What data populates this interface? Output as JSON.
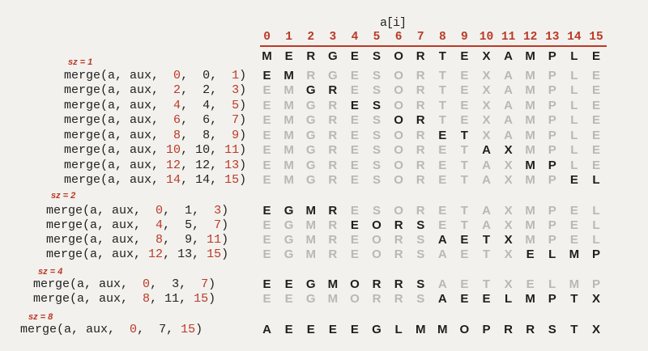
{
  "colors": {
    "red": "#bb3a26",
    "ink": "#222222",
    "letter_black": "#1e1e1e",
    "letter_gray": "#b9b8b5",
    "background": "#f2f1ee"
  },
  "header": {
    "label": "a[i]",
    "indices": [
      "0",
      "1",
      "2",
      "3",
      "4",
      "5",
      "6",
      "7",
      "8",
      "9",
      "10",
      "11",
      "12",
      "13",
      "14",
      "15"
    ]
  },
  "call_prefix": "merge(a, aux,",
  "call_separator": ", ",
  "call_suffix": ")",
  "initial": {
    "letters": [
      "M",
      "E",
      "R",
      "G",
      "E",
      "S",
      "O",
      "R",
      "T",
      "E",
      "X",
      "A",
      "M",
      "P",
      "L",
      "E"
    ],
    "highlight": [
      0,
      15
    ]
  },
  "groups": [
    {
      "sz_label": "sz = 1",
      "rows": [
        {
          "lo": " 0",
          "mid": " 0",
          "hi": " 1",
          "highlight": [
            0,
            1
          ],
          "letters": [
            "E",
            "M",
            "R",
            "G",
            "E",
            "S",
            "O",
            "R",
            "T",
            "E",
            "X",
            "A",
            "M",
            "P",
            "L",
            "E"
          ]
        },
        {
          "lo": " 2",
          "mid": " 2",
          "hi": " 3",
          "highlight": [
            2,
            3
          ],
          "letters": [
            "E",
            "M",
            "G",
            "R",
            "E",
            "S",
            "O",
            "R",
            "T",
            "E",
            "X",
            "A",
            "M",
            "P",
            "L",
            "E"
          ]
        },
        {
          "lo": " 4",
          "mid": " 4",
          "hi": " 5",
          "highlight": [
            4,
            5
          ],
          "letters": [
            "E",
            "M",
            "G",
            "R",
            "E",
            "S",
            "O",
            "R",
            "T",
            "E",
            "X",
            "A",
            "M",
            "P",
            "L",
            "E"
          ]
        },
        {
          "lo": " 6",
          "mid": " 6",
          "hi": " 7",
          "highlight": [
            6,
            7
          ],
          "letters": [
            "E",
            "M",
            "G",
            "R",
            "E",
            "S",
            "O",
            "R",
            "T",
            "E",
            "X",
            "A",
            "M",
            "P",
            "L",
            "E"
          ]
        },
        {
          "lo": " 8",
          "mid": " 8",
          "hi": " 9",
          "highlight": [
            8,
            9
          ],
          "letters": [
            "E",
            "M",
            "G",
            "R",
            "E",
            "S",
            "O",
            "R",
            "E",
            "T",
            "X",
            "A",
            "M",
            "P",
            "L",
            "E"
          ]
        },
        {
          "lo": "10",
          "mid": "10",
          "hi": "11",
          "highlight": [
            10,
            11
          ],
          "letters": [
            "E",
            "M",
            "G",
            "R",
            "E",
            "S",
            "O",
            "R",
            "E",
            "T",
            "A",
            "X",
            "M",
            "P",
            "L",
            "E"
          ]
        },
        {
          "lo": "12",
          "mid": "12",
          "hi": "13",
          "highlight": [
            12,
            13
          ],
          "letters": [
            "E",
            "M",
            "G",
            "R",
            "E",
            "S",
            "O",
            "R",
            "E",
            "T",
            "A",
            "X",
            "M",
            "P",
            "L",
            "E"
          ]
        },
        {
          "lo": "14",
          "mid": "14",
          "hi": "15",
          "highlight": [
            14,
            15
          ],
          "letters": [
            "E",
            "M",
            "G",
            "R",
            "E",
            "S",
            "O",
            "R",
            "E",
            "T",
            "A",
            "X",
            "M",
            "P",
            "E",
            "L"
          ]
        }
      ]
    },
    {
      "sz_label": "sz = 2",
      "rows": [
        {
          "lo": " 0",
          "mid": " 1",
          "hi": " 3",
          "highlight": [
            0,
            3
          ],
          "letters": [
            "E",
            "G",
            "M",
            "R",
            "E",
            "S",
            "O",
            "R",
            "E",
            "T",
            "A",
            "X",
            "M",
            "P",
            "E",
            "L"
          ]
        },
        {
          "lo": " 4",
          "mid": " 5",
          "hi": " 7",
          "highlight": [
            4,
            7
          ],
          "letters": [
            "E",
            "G",
            "M",
            "R",
            "E",
            "O",
            "R",
            "S",
            "E",
            "T",
            "A",
            "X",
            "M",
            "P",
            "E",
            "L"
          ]
        },
        {
          "lo": " 8",
          "mid": " 9",
          "hi": "11",
          "highlight": [
            8,
            11
          ],
          "letters": [
            "E",
            "G",
            "M",
            "R",
            "E",
            "O",
            "R",
            "S",
            "A",
            "E",
            "T",
            "X",
            "M",
            "P",
            "E",
            "L"
          ]
        },
        {
          "lo": "12",
          "mid": "13",
          "hi": "15",
          "highlight": [
            12,
            15
          ],
          "letters": [
            "E",
            "G",
            "M",
            "R",
            "E",
            "O",
            "R",
            "S",
            "A",
            "E",
            "T",
            "X",
            "E",
            "L",
            "M",
            "P"
          ]
        }
      ]
    },
    {
      "sz_label": "sz = 4",
      "rows": [
        {
          "lo": " 0",
          "mid": " 3",
          "hi": " 7",
          "highlight": [
            0,
            7
          ],
          "letters": [
            "E",
            "E",
            "G",
            "M",
            "O",
            "R",
            "R",
            "S",
            "A",
            "E",
            "T",
            "X",
            "E",
            "L",
            "M",
            "P"
          ]
        },
        {
          "lo": " 8",
          "mid": "11",
          "hi": "15",
          "highlight": [
            8,
            15
          ],
          "letters": [
            "E",
            "E",
            "G",
            "M",
            "O",
            "R",
            "R",
            "S",
            "A",
            "E",
            "E",
            "L",
            "M",
            "P",
            "T",
            "X"
          ]
        }
      ]
    },
    {
      "sz_label": "sz = 8",
      "rows": [
        {
          "lo": " 0",
          "mid": " 7",
          "hi": "15",
          "highlight": [
            0,
            15
          ],
          "letters": [
            "A",
            "E",
            "E",
            "E",
            "E",
            "G",
            "L",
            "M",
            "M",
            "O",
            "P",
            "R",
            "R",
            "S",
            "T",
            "X"
          ]
        }
      ]
    }
  ]
}
